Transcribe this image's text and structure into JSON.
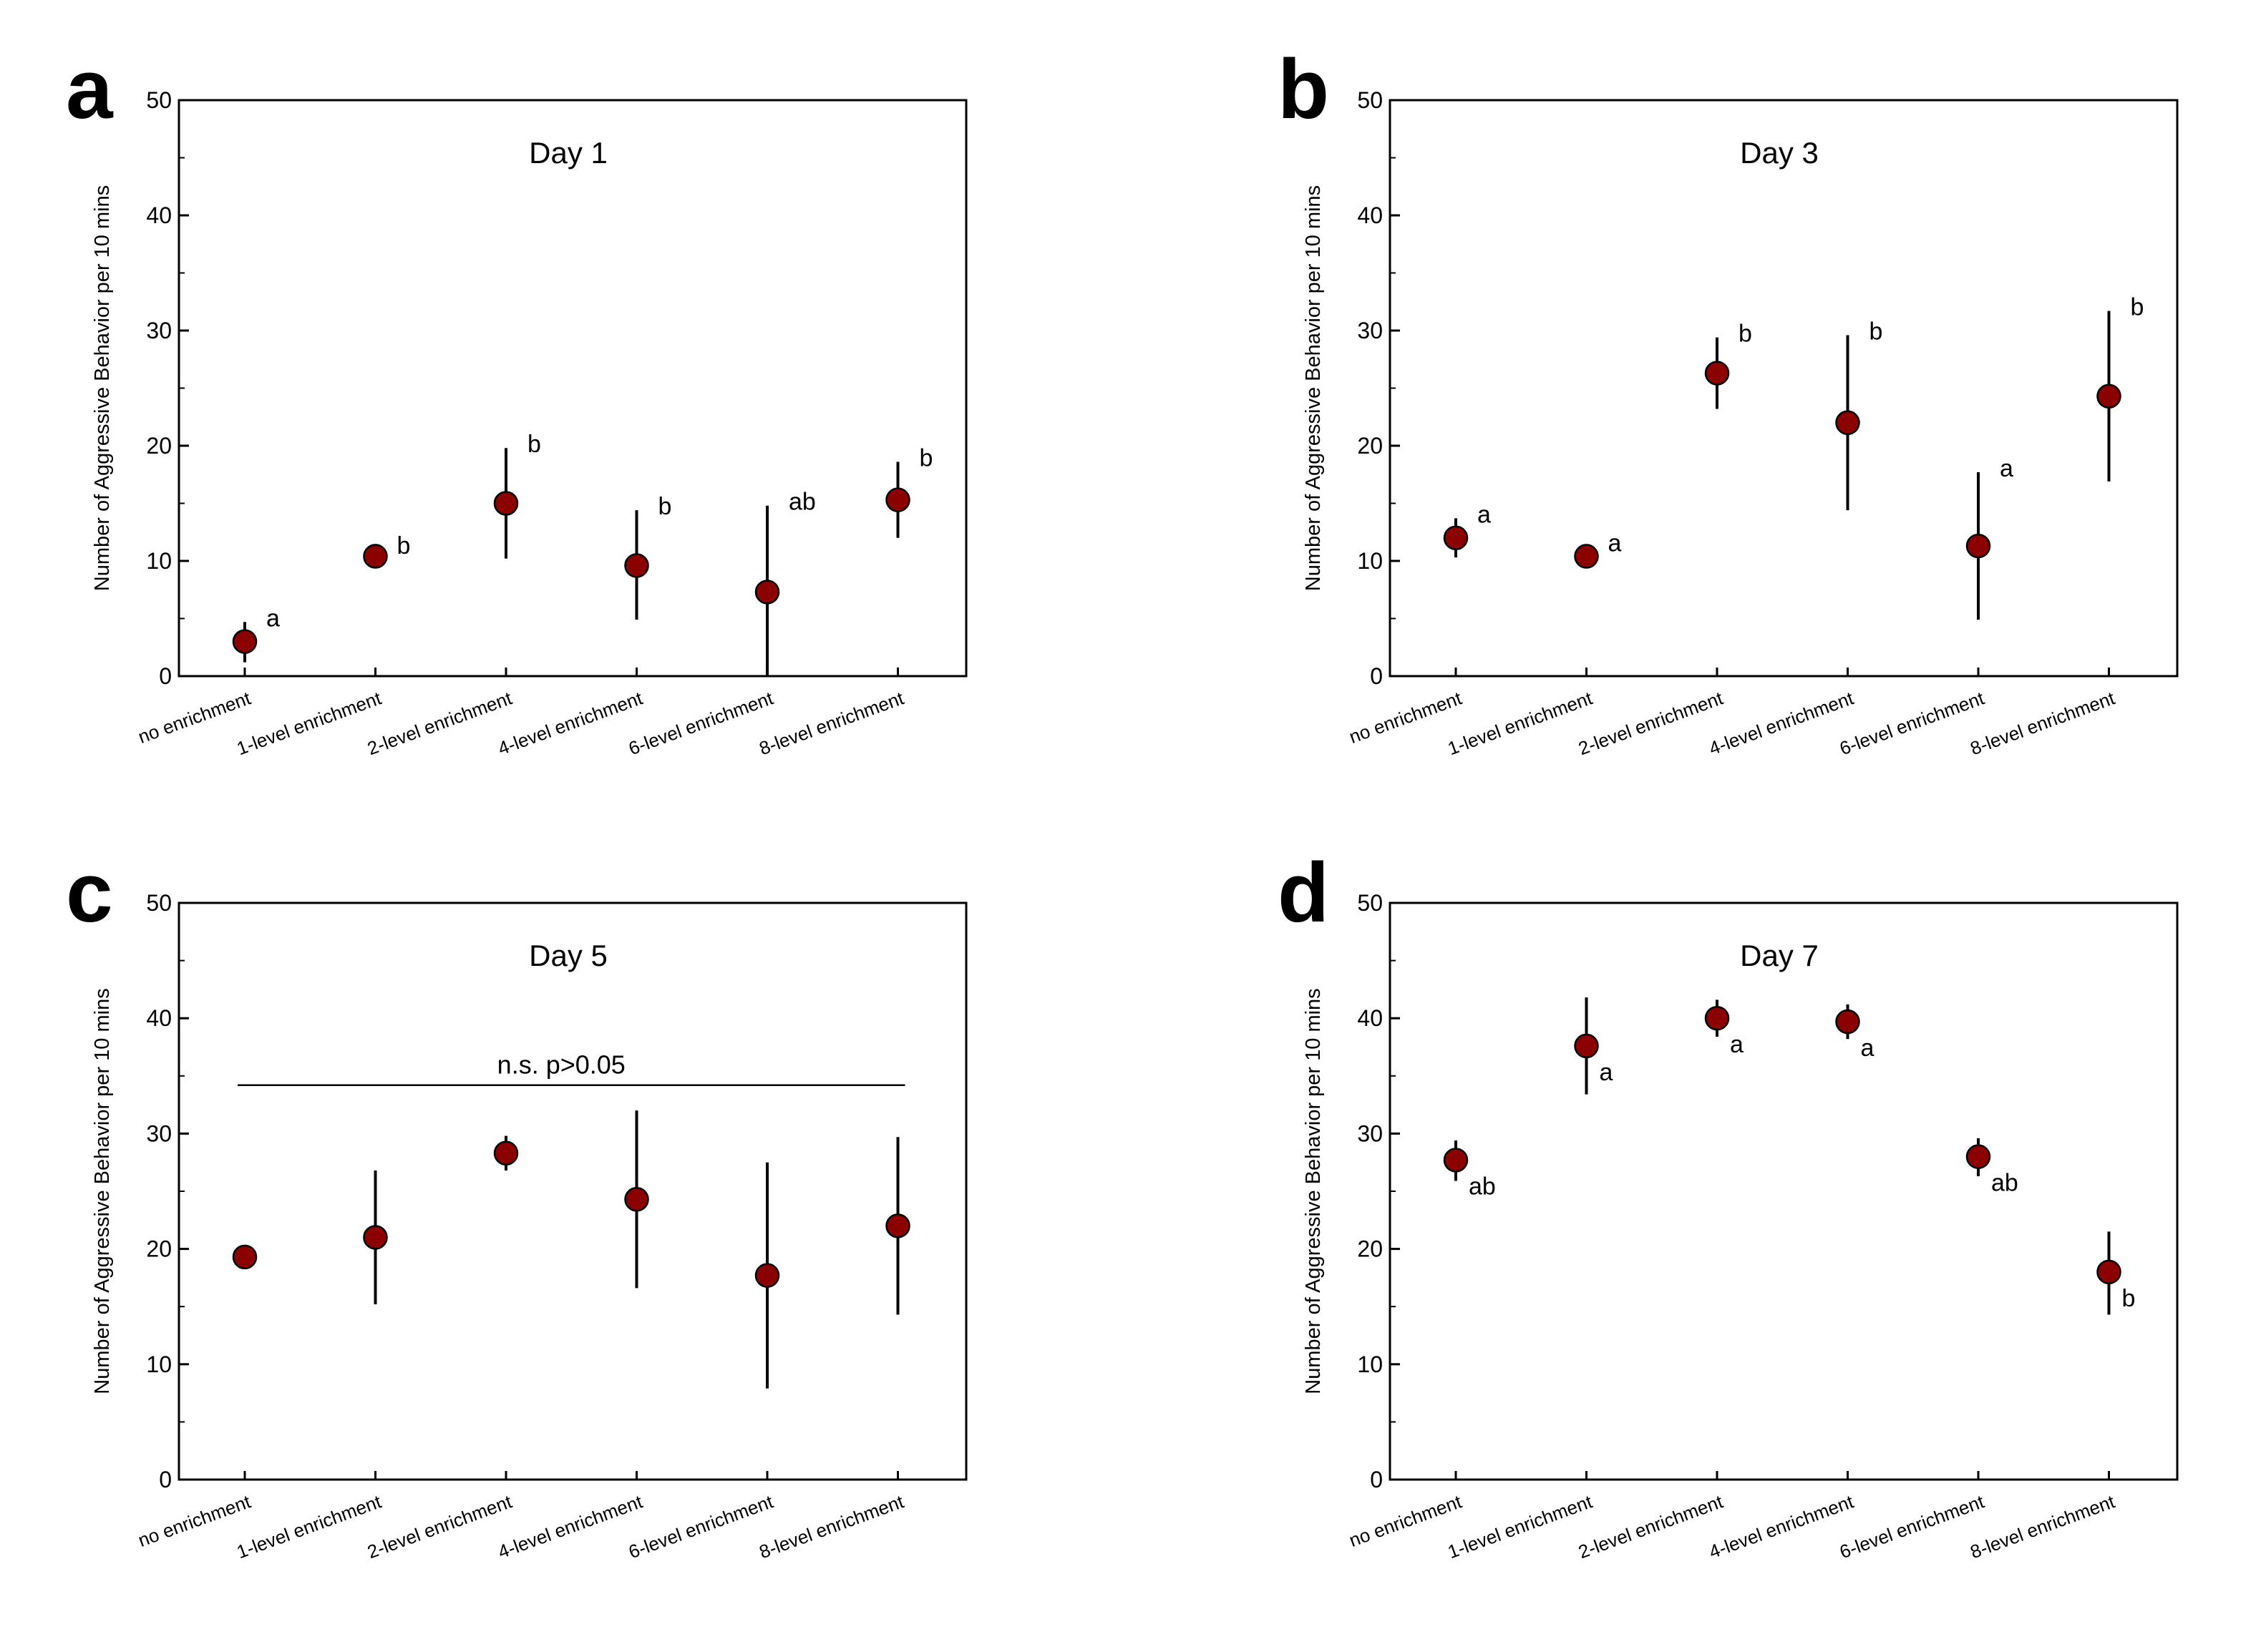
{
  "chart_data": [
    {
      "panel": "a",
      "type": "scatter",
      "title": "Day 1",
      "xlabel": "",
      "ylabel": "Number of Aggressive Behavior per 10 mins",
      "ylim": [
        0,
        50
      ],
      "yticks": [
        0,
        10,
        20,
        30,
        40,
        50
      ],
      "categories": [
        "no enrichment",
        "1-level enrichment",
        "2-level enrichment",
        "4-level enrichment",
        "6-level enrichment",
        "8-level enrichment"
      ],
      "values": [
        3.0,
        10.4,
        15.0,
        9.6,
        7.3,
        15.3
      ],
      "error_low": [
        1.2,
        9.8,
        10.2,
        4.9,
        0.0,
        12.0
      ],
      "error_high": [
        4.7,
        11.0,
        19.8,
        14.4,
        14.8,
        18.6
      ],
      "significance": [
        "a",
        "b",
        "b",
        "b",
        "ab",
        "b"
      ],
      "marker_color": "#8b0000"
    },
    {
      "panel": "b",
      "type": "scatter",
      "title": "Day 3",
      "xlabel": "",
      "ylabel": "Number of Aggressive Behavior per 10 mins",
      "ylim": [
        0,
        50
      ],
      "yticks": [
        0,
        10,
        20,
        30,
        40,
        50
      ],
      "categories": [
        "no enrichment",
        "1-level enrichment",
        "2-level enrichment",
        "4-level enrichment",
        "6-level enrichment",
        "8-level enrichment"
      ],
      "values": [
        12.0,
        10.4,
        26.3,
        22.0,
        11.3,
        24.3
      ],
      "error_low": [
        10.3,
        9.6,
        23.2,
        14.4,
        4.9,
        16.9
      ],
      "error_high": [
        13.7,
        11.2,
        29.4,
        29.6,
        17.7,
        31.7
      ],
      "significance": [
        "a",
        "a",
        "b",
        "b",
        "a",
        "b"
      ],
      "marker_color": "#8b0000"
    },
    {
      "panel": "c",
      "type": "scatter",
      "title": "Day 5",
      "xlabel": "",
      "ylabel": "Number of Aggressive Behavior per 10 mins",
      "ylim": [
        0,
        50
      ],
      "yticks": [
        0,
        10,
        20,
        30,
        40,
        50
      ],
      "categories": [
        "no enrichment",
        "1-level enrichment",
        "2-level enrichment",
        "4-level enrichment",
        "6-level enrichment",
        "8-level enrichment"
      ],
      "values": [
        19.3,
        21.0,
        28.3,
        24.3,
        17.7,
        22.0
      ],
      "error_low": [
        18.4,
        15.2,
        26.8,
        16.6,
        7.9,
        14.3
      ],
      "error_high": [
        20.2,
        26.8,
        29.8,
        32.0,
        27.5,
        29.7
      ],
      "significance": [
        "",
        "",
        "",
        "",
        "",
        ""
      ],
      "annotation": "n.s.  p>0.05",
      "annotation_line_y": 34.2,
      "marker_color": "#8b0000"
    },
    {
      "panel": "d",
      "type": "scatter",
      "title": "Day 7",
      "xlabel": "",
      "ylabel": "Number of Aggressive Behavior per 10 mins",
      "ylim": [
        0,
        50
      ],
      "yticks": [
        0,
        10,
        20,
        30,
        40,
        50
      ],
      "categories": [
        "no enrichment",
        "1-level enrichment",
        "2-level enrichment",
        "4-level enrichment",
        "6-level enrichment",
        "8-level enrichment"
      ],
      "values": [
        27.7,
        37.6,
        40.0,
        39.7,
        28.0,
        18.0
      ],
      "error_low": [
        25.9,
        33.4,
        38.4,
        38.2,
        26.3,
        14.3
      ],
      "error_high": [
        29.4,
        41.8,
        41.6,
        41.2,
        29.6,
        21.5
      ],
      "significance": [
        "ab",
        "a",
        "a",
        "a",
        "ab",
        "b"
      ],
      "marker_color": "#8b0000"
    }
  ]
}
